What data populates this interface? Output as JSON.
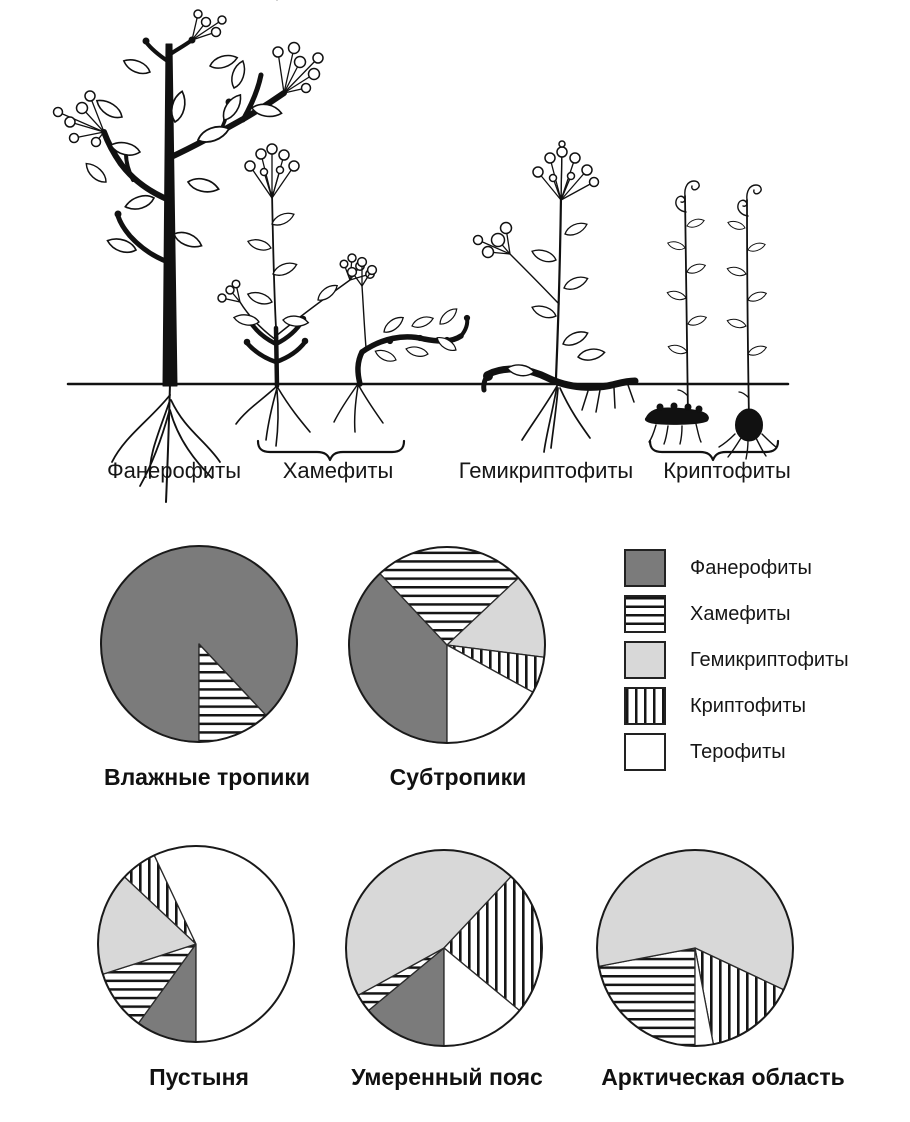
{
  "page": {
    "background": "#ffffff"
  },
  "illustration": {
    "labels": [
      "Фанерофиты",
      "Хамефиты",
      "Гемикриптофиты",
      "Криптофиты"
    ]
  },
  "legend": {
    "items": [
      {
        "label": "Фанерофиты",
        "swatch": "dark-gray-solid"
      },
      {
        "label": "Хамефиты",
        "swatch": "horizontal-stripes"
      },
      {
        "label": "Гемикриптофиты",
        "swatch": "light-gray-solid"
      },
      {
        "label": "Криптофиты",
        "swatch": "vertical-stripes"
      },
      {
        "label": "Терофиты",
        "swatch": "white"
      }
    ]
  },
  "colors": {
    "dark_gray": "#7b7b7b",
    "light_gray": "#d8d8d8",
    "ink": "#111111",
    "white": "#ffffff"
  },
  "chart_data": {
    "type": "pie",
    "categories": [
      "Фанерофиты",
      "Хамефиты",
      "Гемикриптофиты",
      "Криптофиты",
      "Терофиты"
    ],
    "unit": "percent",
    "start_angle_deg": 180,
    "direction": "clockwise",
    "legend_position": "top-right",
    "charts": [
      {
        "title": "Влажные тропики",
        "values": [
          88,
          12,
          0,
          0,
          0
        ]
      },
      {
        "title": "Субтропики",
        "values": [
          38,
          25,
          14,
          6,
          17
        ]
      },
      {
        "title": "Пустыня",
        "values": [
          10,
          10,
          17,
          6,
          57
        ]
      },
      {
        "title": "Умеренный пояс",
        "values": [
          14,
          3,
          45,
          24,
          14
        ]
      },
      {
        "title": "Арктическая область",
        "values": [
          0,
          22,
          60,
          15,
          3
        ]
      }
    ]
  }
}
